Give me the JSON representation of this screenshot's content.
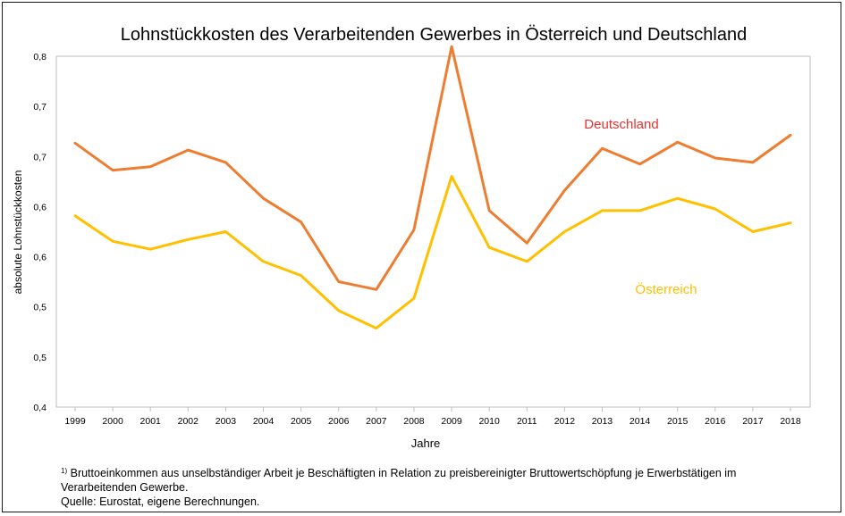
{
  "chart_data": {
    "type": "line",
    "title": "Lohnstückkosten des Verarbeitenden Gewerbes in Österreich und Deutschland",
    "xlabel": "Jahre",
    "ylabel": "absolute Lohnstückkosten",
    "categories": [
      "1999",
      "2000",
      "2001",
      "2002",
      "2003",
      "2004",
      "2005",
      "2006",
      "2007",
      "2008",
      "2009",
      "2010",
      "2011",
      "2012",
      "2013",
      "2014",
      "2015",
      "2016",
      "2017",
      "2018"
    ],
    "y_ticks": [
      "0,4",
      "0,5",
      "0,5",
      "0,6",
      "0,6",
      "0,7",
      "0,7",
      "0,8"
    ],
    "ylim": [
      0.4,
      0.8
    ],
    "grid": false,
    "series": [
      {
        "name": "Deutschland",
        "color": "#ED7D31",
        "values": [
          0.701,
          0.67,
          0.674,
          0.693,
          0.679,
          0.638,
          0.611,
          0.543,
          0.534,
          0.602,
          0.811,
          0.624,
          0.587,
          0.647,
          0.695,
          0.677,
          0.702,
          0.684,
          0.679,
          0.71
        ]
      },
      {
        "name": "Österreich",
        "color": "#FFC000",
        "values": [
          0.618,
          0.589,
          0.58,
          0.591,
          0.6,
          0.566,
          0.55,
          0.51,
          0.49,
          0.524,
          0.663,
          0.582,
          0.566,
          0.6,
          0.624,
          0.624,
          0.638,
          0.626,
          0.6,
          0.61
        ]
      }
    ]
  },
  "footnote": {
    "marker": "1)",
    "line1": "Bruttoeinkommen aus unselbständiger Arbeit je Beschäftigten in Relation zu preisbereinigter Bruttowertschöpfung je Erwerbstätigen im",
    "line2": "Verarbeitenden Gewerbe.",
    "line3": "Quelle: Eurostat, eigene Berechnungen."
  }
}
